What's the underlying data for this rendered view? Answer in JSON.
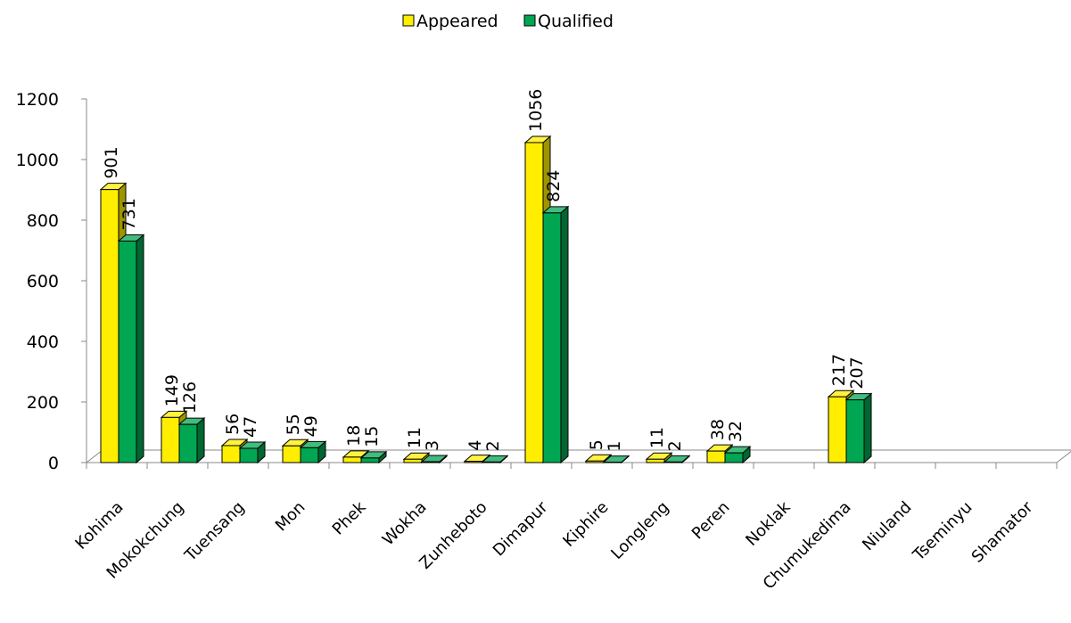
{
  "chart_data": {
    "type": "bar",
    "title": "",
    "xlabel": "",
    "ylabel": "",
    "categories": [
      "Kohima",
      "Mokokchung",
      "Tuensang",
      "Mon",
      "Phek",
      "Wokha",
      "Zunheboto",
      "Dimapur",
      "Kiphire",
      "Longleng",
      "Peren",
      "Noklak",
      "Chumukedima",
      "Niuland",
      "Tseminyu",
      "Shamator"
    ],
    "series": [
      {
        "name": "Appeared",
        "color": "#FFEE00",
        "values": [
          901,
          149,
          56,
          55,
          18,
          11,
          4,
          1056,
          5,
          11,
          38,
          null,
          217,
          null,
          null,
          null
        ]
      },
      {
        "name": "Qualified",
        "color": "#00A651",
        "values": [
          731,
          126,
          47,
          49,
          15,
          3,
          2,
          824,
          1,
          2,
          32,
          null,
          207,
          null,
          null,
          null
        ]
      }
    ],
    "ylim": [
      0,
      1200
    ],
    "yticks": [
      "0",
      "200",
      "400",
      "600",
      "800",
      "1000",
      "1200"
    ],
    "grid": false,
    "legend_position": "top",
    "three_d": true
  }
}
